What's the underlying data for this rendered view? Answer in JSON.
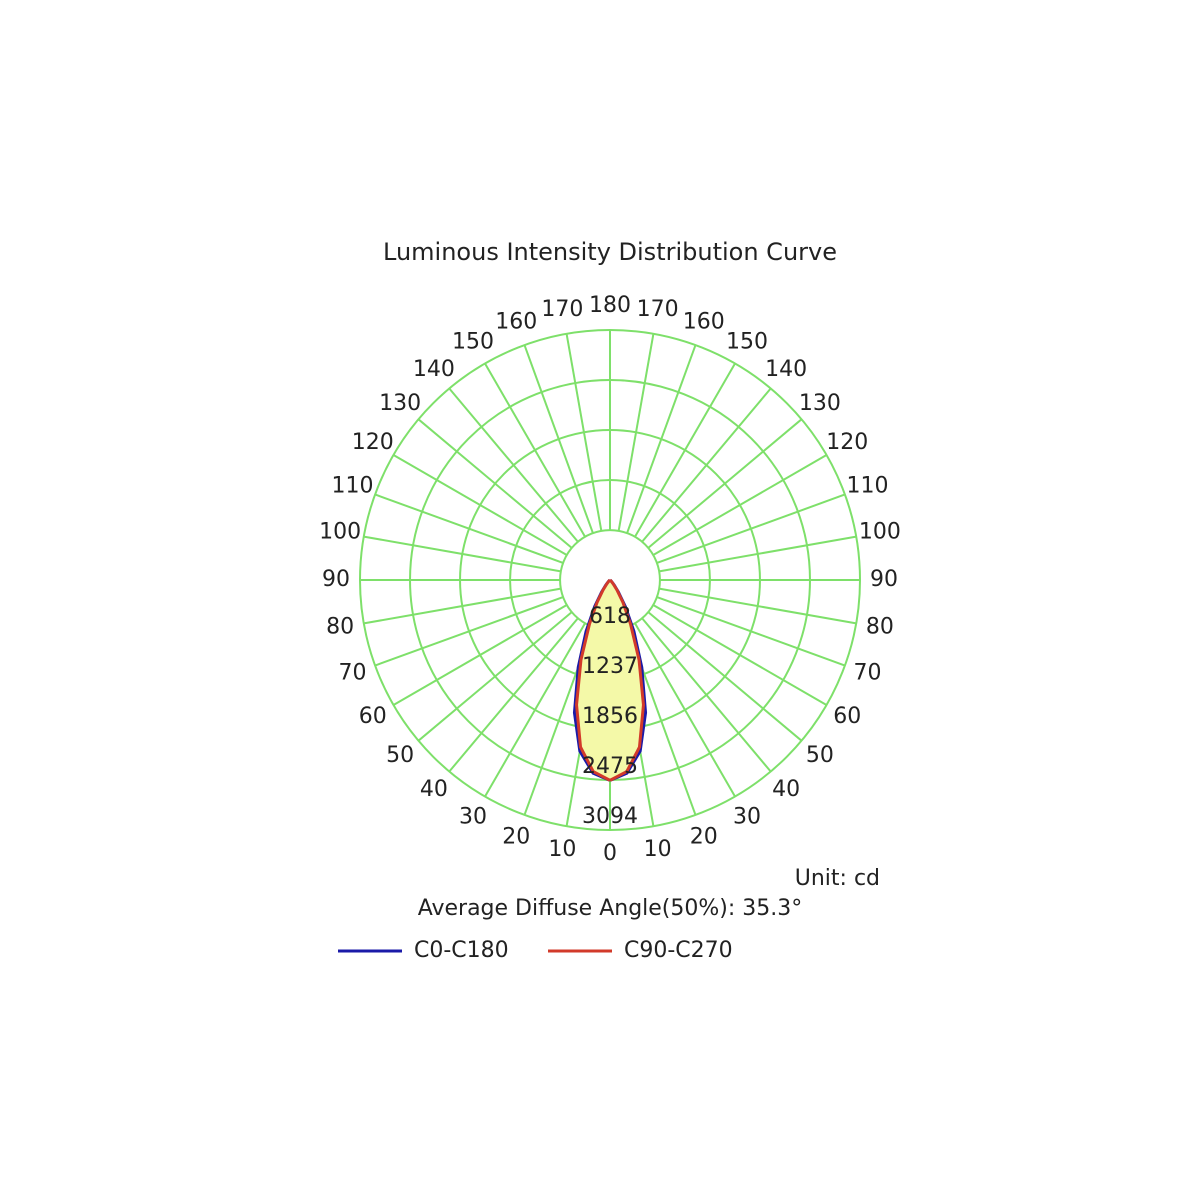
{
  "chart_data": {
    "type": "polar",
    "title": "Luminous Intensity Distribution Curve",
    "unit_label": "Unit: cd",
    "note": "Average Diffuse Angle(50%): 35.3°",
    "angle_ticks": [
      0,
      10,
      20,
      30,
      40,
      50,
      60,
      70,
      80,
      90,
      100,
      110,
      120,
      130,
      140,
      150,
      160,
      170,
      180
    ],
    "rlim": [
      0,
      3094
    ],
    "rticks": [
      618,
      1237,
      1856,
      2475,
      3094
    ],
    "angles": [
      0,
      5,
      10,
      15,
      20,
      25,
      30,
      35,
      40,
      45,
      50,
      60,
      90
    ],
    "fill_color": "#f4f9a8",
    "grid_color": "#7ee06a",
    "series": [
      {
        "name": "C0-C180",
        "color": "#1a1aa8",
        "values": [
          2480,
          2400,
          2150,
          1700,
          1150,
          700,
          380,
          180,
          80,
          30,
          10,
          0,
          0
        ]
      },
      {
        "name": "C90-C270",
        "color": "#d23a2a",
        "values": [
          2480,
          2380,
          2100,
          1600,
          1050,
          600,
          320,
          150,
          60,
          20,
          5,
          0,
          0
        ]
      }
    ]
  }
}
